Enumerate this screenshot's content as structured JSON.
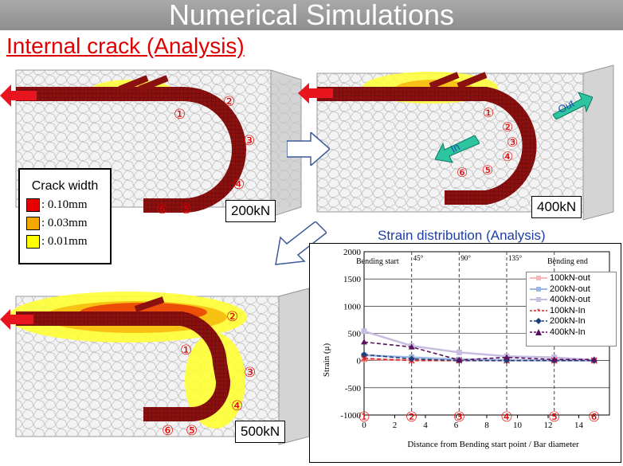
{
  "header": {
    "title": "Numerical Simulations"
  },
  "subtitle": "Internal crack (Analysis)",
  "panels": [
    {
      "load": "200kN"
    },
    {
      "load": "400kN"
    },
    {
      "load": "500kN"
    }
  ],
  "position_markers": [
    "①",
    "②",
    "③",
    "④",
    "⑤",
    "⑥"
  ],
  "panel2_arrows": {
    "out": "Out",
    "in": "In"
  },
  "legend": {
    "title": "Crack width",
    "items": [
      {
        "label": ": 0.10mm",
        "color": "#e60000"
      },
      {
        "label": ": 0.03mm",
        "color": "#f5a800"
      },
      {
        "label": ": 0.01mm",
        "color": "#ffff00"
      }
    ]
  },
  "colors": {
    "rebar": "#8b1010",
    "load_arrow": "#e8141e",
    "marker": "#e00000",
    "direction_arrow": "#2ec4a0"
  },
  "chart_data": {
    "type": "line",
    "title": "Strain distribution (Analysis)",
    "xlabel": "Distance from Bending start point / Bar diameter",
    "ylabel": "Strain (μ)",
    "xlim": [
      0,
      16
    ],
    "ylim": [
      -1000,
      2000
    ],
    "x_ticks": [
      "0",
      "2",
      "4",
      "6",
      "8",
      "10",
      "12",
      "14"
    ],
    "y_ticks": [
      "2000",
      "1500",
      "1000",
      "500",
      "0",
      "-500",
      "-1000"
    ],
    "x": [
      0,
      3.1,
      6.2,
      9.3,
      12.4,
      15
    ],
    "vertical_lines": [
      {
        "x": 3.1,
        "label": "45°"
      },
      {
        "x": 6.2,
        "label": "90°"
      },
      {
        "x": 9.3,
        "label": "135°"
      },
      {
        "x": 12.4,
        "label": ""
      }
    ],
    "annotations": {
      "start": "Bending start",
      "end": "Bending end"
    },
    "markers": [
      "①",
      "②",
      "③",
      "④",
      "⑤",
      "⑥"
    ],
    "series": [
      {
        "name": "100kN-out",
        "color": "#f4b8b8",
        "dash": false,
        "marker": "square",
        "values": [
          20,
          10,
          5,
          5,
          5,
          5
        ]
      },
      {
        "name": "200kN-out",
        "color": "#9db8e0",
        "dash": false,
        "marker": "square",
        "values": [
          100,
          60,
          20,
          10,
          5,
          5
        ]
      },
      {
        "name": "400kN-out",
        "color": "#c8bce0",
        "dash": false,
        "marker": "square",
        "values": [
          540,
          270,
          150,
          80,
          60,
          10
        ]
      },
      {
        "name": "100kN-In",
        "color": "#e02020",
        "dash": true,
        "marker": "star",
        "values": [
          40,
          0,
          0,
          0,
          0,
          0
        ]
      },
      {
        "name": "200kN-In",
        "color": "#1f3f7a",
        "dash": true,
        "marker": "diamond",
        "values": [
          110,
          30,
          0,
          0,
          0,
          0
        ]
      },
      {
        "name": "400kN-In",
        "color": "#5a1060",
        "dash": true,
        "marker": "triangle",
        "values": [
          340,
          250,
          10,
          60,
          20,
          20
        ]
      }
    ]
  }
}
